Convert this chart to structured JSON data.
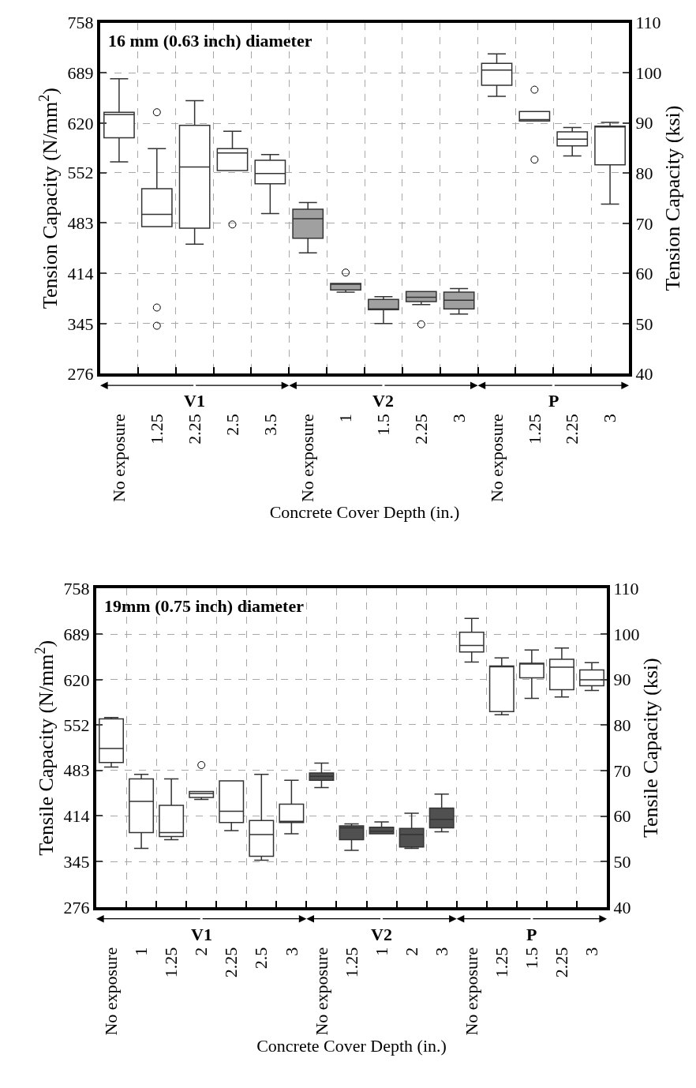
{
  "chart_data": [
    {
      "type": "box",
      "title": "16 mm (0.63 inch) diameter",
      "xlabel": "Concrete Cover Depth (in.)",
      "ylabel": "Tension Capacity (N/mm$^{2}$)",
      "y2label": "Tension Capacity (ksi)",
      "annotations": [
        "V1",
        "V2",
        "P"
      ],
      "categories": [
        "No exposure",
        "1.25",
        "2.25",
        "2.5",
        "3.5",
        "No exposure",
        "1",
        "1.5",
        "2.25",
        "3",
        "No exposure",
        "1.25",
        "2.25",
        "3"
      ],
      "ylim": [
        276,
        758
      ],
      "yticks": [
        276,
        345,
        414,
        483,
        552,
        620,
        689,
        758
      ],
      "y2lim": [
        40,
        110
      ],
      "y2ticks": [
        40,
        50,
        60,
        70,
        80,
        90,
        100,
        110
      ],
      "grid": true,
      "legend": false,
      "series": [
        {
          "color": "#ffffff",
          "boxes": [
            {
              "low": 567,
              "q1": 600,
              "median": 632,
              "q3": 635,
              "high": 681
            },
            {
              "low": 478,
              "q1": 478,
              "median": 495,
              "q3": 530,
              "high": 585,
              "outliers": [
                635,
                367,
                342
              ]
            },
            {
              "low": 454,
              "q1": 476,
              "median": 560,
              "q3": 617,
              "high": 651
            },
            {
              "low": 555,
              "q1": 555,
              "median": 579,
              "q3": 585,
              "high": 609,
              "outliers": [
                481
              ]
            },
            {
              "low": 496,
              "q1": 537,
              "median": 551,
              "q3": 569,
              "high": 577
            },
            null,
            null,
            null,
            null,
            null,
            null,
            null,
            null,
            null
          ]
        },
        {
          "color": "#a0a0a0",
          "boxes": [
            null,
            null,
            null,
            null,
            null,
            {
              "low": 442,
              "q1": 462,
              "median": 489,
              "q3": 502,
              "high": 511
            },
            {
              "low": 388,
              "q1": 391,
              "median": 399,
              "q3": 400,
              "high": 400,
              "outliers": [
                415
              ]
            },
            {
              "low": 345,
              "q1": 364,
              "median": 364,
              "q3": 378,
              "high": 382
            },
            {
              "low": 371,
              "q1": 375,
              "median": 381,
              "q3": 389,
              "high": 389,
              "outliers": [
                344
              ]
            },
            {
              "low": 358,
              "q1": 365,
              "median": 377,
              "q3": 388,
              "high": 393
            },
            null,
            null,
            null,
            null
          ]
        },
        {
          "color": "#ffffff",
          "boxes": [
            null,
            null,
            null,
            null,
            null,
            null,
            null,
            null,
            null,
            null,
            {
              "low": 657,
              "q1": 672,
              "median": 693,
              "q3": 702,
              "high": 715
            },
            {
              "low": 623,
              "q1": 623,
              "median": 625,
              "q3": 636,
              "high": 636,
              "outliers": [
                666,
                570
              ]
            },
            {
              "low": 575,
              "q1": 589,
              "median": 598,
              "q3": 608,
              "high": 614
            },
            {
              "low": 509,
              "q1": 563,
              "median": 616,
              "q3": 616,
              "high": 621
            }
          ]
        }
      ]
    },
    {
      "type": "box",
      "title": "19mm (0.75 inch) diameter",
      "xlabel": "Concrete Cover Depth (in.)",
      "ylabel": "Tensile Capacity (N/mm$^{2}$)",
      "y2label": "Tensile Capacity (ksi)",
      "annotations": [
        "V1",
        "V2",
        "P"
      ],
      "categories": [
        "No exposure",
        "1",
        "1.25",
        "2",
        "2.25",
        "2.5",
        "3",
        "No exposure",
        "1.25",
        "1",
        "2",
        "3",
        "No exposure",
        "1.25",
        "1.5",
        "2.25",
        "3"
      ],
      "ylim": [
        276,
        758
      ],
      "yticks": [
        276,
        345,
        414,
        483,
        552,
        620,
        689,
        758
      ],
      "y2lim": [
        40,
        110
      ],
      "y2ticks": [
        40,
        50,
        60,
        70,
        80,
        90,
        100,
        110
      ],
      "grid": true,
      "legend": false,
      "series": [
        {
          "color": "#ffffff",
          "boxes": [
            {
              "low": 488,
              "q1": 495,
              "median": 516,
              "q3": 561,
              "high": 563
            },
            {
              "low": 365,
              "q1": 389,
              "median": 436,
              "q3": 470,
              "high": 477
            },
            {
              "low": 378,
              "q1": 383,
              "median": 389,
              "q3": 430,
              "high": 470
            },
            {
              "low": 439,
              "q1": 442,
              "median": 448,
              "q3": 451,
              "high": 451,
              "outliers": [
                491
              ]
            },
            {
              "low": 392,
              "q1": 404,
              "median": 421,
              "q3": 467,
              "high": 467
            },
            {
              "low": 347,
              "q1": 353,
              "median": 386,
              "q3": 407,
              "high": 477
            },
            {
              "low": 387,
              "q1": 404,
              "median": 406,
              "q3": 432,
              "high": 468
            },
            null,
            null,
            null,
            null,
            null,
            null,
            null,
            null,
            null,
            null
          ]
        },
        {
          "color": "#505050",
          "boxes": [
            null,
            null,
            null,
            null,
            null,
            null,
            null,
            {
              "low": 457,
              "q1": 468,
              "median": 474,
              "q3": 479,
              "high": 494
            },
            {
              "low": 362,
              "q1": 378,
              "median": 396,
              "q3": 399,
              "high": 402
            },
            {
              "low": 387,
              "q1": 387,
              "median": 391,
              "q3": 397,
              "high": 405
            },
            {
              "low": 365,
              "q1": 367,
              "median": 386,
              "q3": 395,
              "high": 418
            },
            {
              "low": 390,
              "q1": 396,
              "median": 409,
              "q3": 426,
              "high": 447
            },
            null,
            null,
            null,
            null,
            null
          ]
        },
        {
          "color": "#ffffff",
          "boxes": [
            null,
            null,
            null,
            null,
            null,
            null,
            null,
            null,
            null,
            null,
            null,
            null,
            {
              "low": 647,
              "q1": 662,
              "median": 672,
              "q3": 692,
              "high": 713
            },
            {
              "low": 567,
              "q1": 572,
              "median": 640,
              "q3": 641,
              "high": 653
            },
            {
              "low": 592,
              "q1": 623,
              "median": 644,
              "q3": 645,
              "high": 665
            },
            {
              "low": 594,
              "q1": 605,
              "median": 639,
              "q3": 651,
              "high": 668
            },
            {
              "low": 604,
              "q1": 611,
              "median": 620,
              "q3": 635,
              "high": 646
            }
          ]
        }
      ]
    }
  ]
}
